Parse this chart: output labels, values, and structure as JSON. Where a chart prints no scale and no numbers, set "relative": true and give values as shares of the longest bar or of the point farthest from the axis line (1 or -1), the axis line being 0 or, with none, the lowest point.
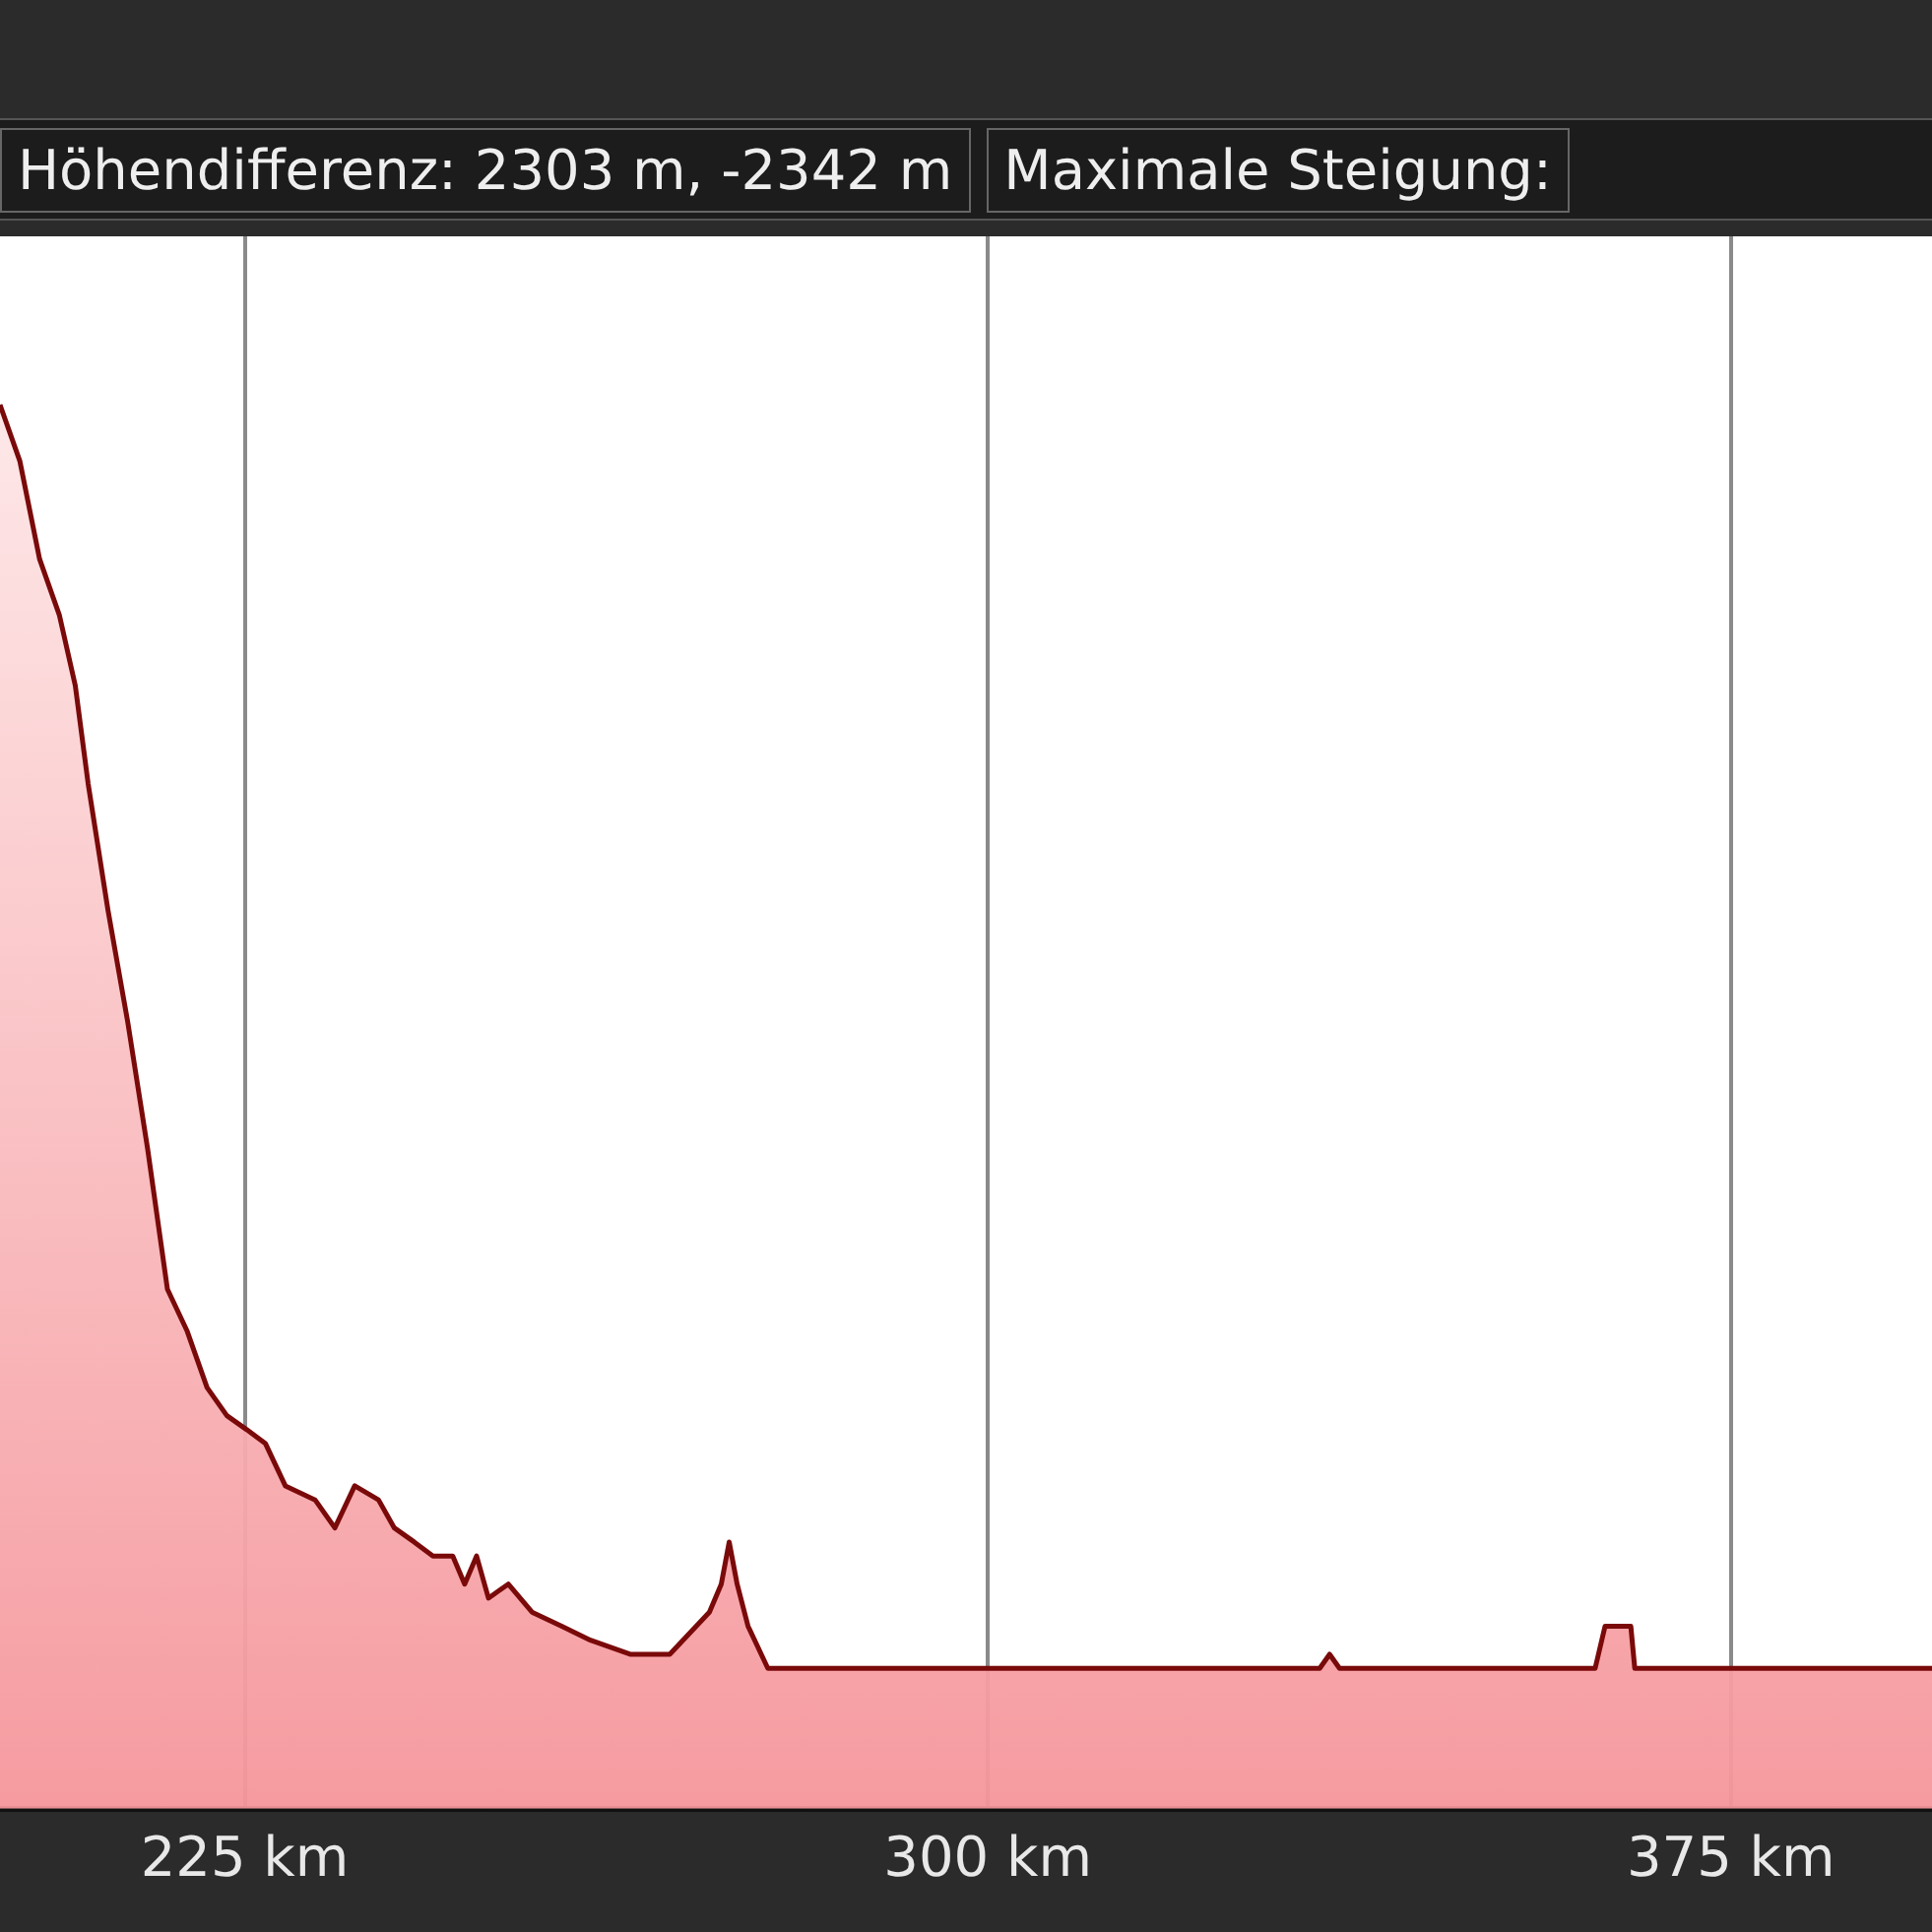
{
  "chart_data": {
    "type": "area",
    "annotations": [
      "Höhendifferenz: 2303 m, -2342 m",
      "Maximale Steigung:"
    ],
    "relative": true,
    "grid": "x",
    "marker": "none",
    "line_style": "solid",
    "legend": false,
    "x": [
      200.3,
      202.3,
      204.3,
      206.3,
      207.9,
      209.2,
      211.2,
      213.2,
      215.2,
      217.2,
      219.2,
      221.2,
      223.2,
      225.2,
      227.1,
      229.1,
      232.1,
      234.1,
      236.1,
      238.5,
      240.1,
      242.1,
      244.0,
      246.0,
      247.2,
      248.4,
      249.6,
      251.6,
      254.0,
      257.0,
      259.9,
      263.9,
      267.9,
      271.9,
      273.1,
      273.9,
      274.7,
      275.8,
      277.8,
      279.8,
      283.8,
      287.8,
      319.6,
      333.5,
      334.5,
      335.5,
      361.3,
      362.3,
      363.7,
      364.9,
      365.3,
      395.3
    ],
    "xlim": [
      200.3,
      395.3
    ],
    "xticks": [
      {
        "value": 225,
        "label": "225 km"
      },
      {
        "value": 300,
        "label": "300 km"
      },
      {
        "value": 375,
        "label": "375 km"
      }
    ],
    "series": [
      {
        "color": "#7a0a0a",
        "values": [
          1.0,
          0.96,
          0.89,
          0.85,
          0.8,
          0.73,
          0.64,
          0.56,
          0.47,
          0.37,
          0.34,
          0.3,
          0.28,
          0.27,
          0.26,
          0.23,
          0.22,
          0.2,
          0.23,
          0.22,
          0.2,
          0.19,
          0.18,
          0.18,
          0.16,
          0.18,
          0.15,
          0.16,
          0.14,
          0.13,
          0.12,
          0.11,
          0.11,
          0.14,
          0.16,
          0.19,
          0.16,
          0.13,
          0.1,
          0.1,
          0.1,
          0.1,
          0.1,
          0.1,
          0.11,
          0.1,
          0.1,
          0.13,
          0.13,
          0.13,
          0.1,
          0.1
        ]
      }
    ]
  }
}
